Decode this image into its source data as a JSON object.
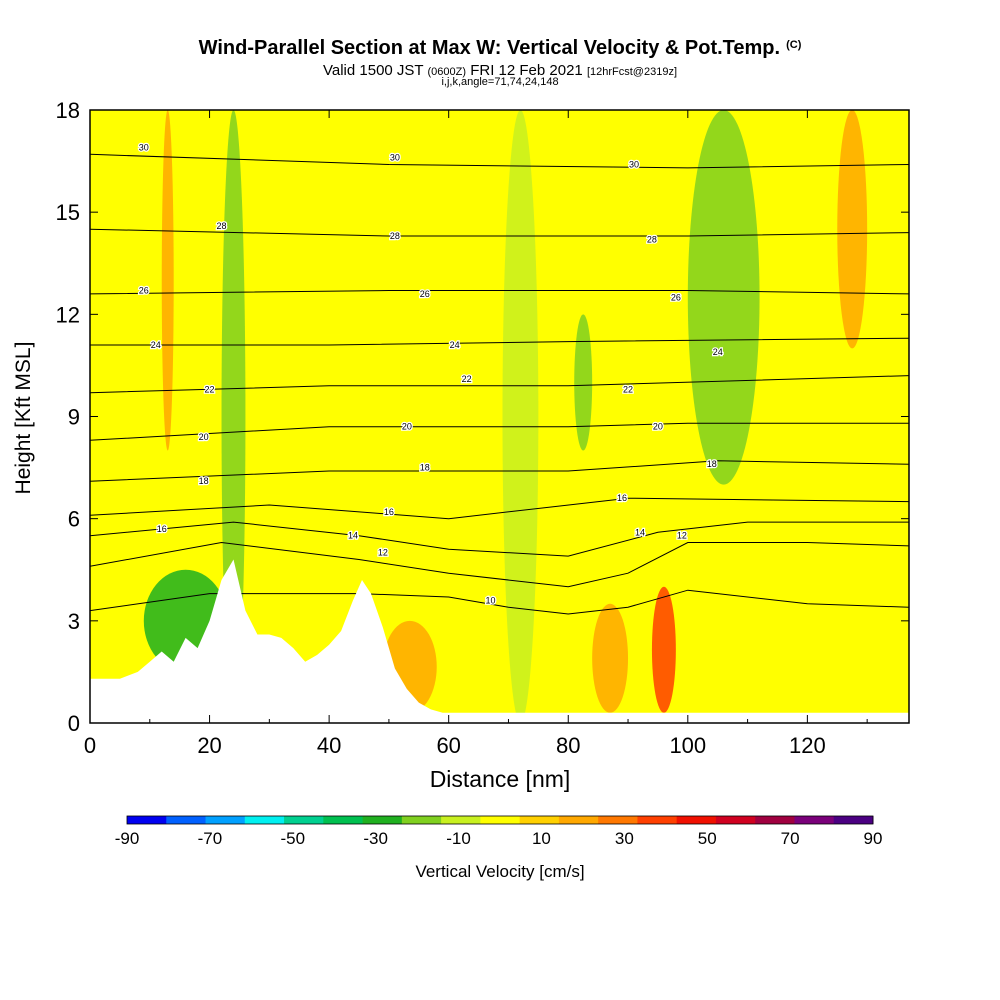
{
  "title": "Wind-Parallel Section at Max W: Vertical Velocity & Pot.Temp.",
  "copyright_mark": "(C)",
  "subtitle_main": "Valid 1500 JST",
  "subtitle_utc": "(0600Z)",
  "subtitle_date": "FRI 12 Feb 2021",
  "subtitle_fcst": "[12hrFcst@2319z]",
  "index_line": "i,j,k,angle=71,74,24,148",
  "chart_data": {
    "type": "heatmap",
    "xlabel": "Distance [nm]",
    "ylabel": "Height [Kft MSL]",
    "xlim": [
      0,
      137
    ],
    "ylim": [
      0,
      18
    ],
    "x_ticks": [
      0,
      20,
      40,
      60,
      80,
      100,
      120
    ],
    "y_ticks": [
      0,
      3,
      6,
      9,
      12,
      15,
      18
    ],
    "colorbar": {
      "label": "Vertical Velocity [cm/s]",
      "ticks": [
        -90,
        -70,
        -50,
        -30,
        -10,
        10,
        30,
        50,
        70,
        90
      ],
      "colors": [
        "#0000f0",
        "#0060ff",
        "#00a0ff",
        "#00f0f0",
        "#00d090",
        "#00c050",
        "#20b020",
        "#80d020",
        "#c8f020",
        "#ffff00",
        "#ffd000",
        "#ffa800",
        "#ff7800",
        "#ff4000",
        "#f01000",
        "#d00020",
        "#a00040",
        "#7a007a",
        "#4b0082"
      ]
    },
    "background_w": 0,
    "terrain_ridges": [
      {
        "x": [
          0,
          2,
          5,
          8,
          10,
          12,
          14,
          16,
          18,
          20,
          22,
          24,
          26,
          28,
          30,
          32,
          34,
          36,
          38,
          40,
          42,
          44,
          45.5,
          47,
          49,
          51,
          53,
          55,
          57,
          59,
          61,
          137
        ],
        "height": [
          1.3,
          1.3,
          1.3,
          1.5,
          1.8,
          2.1,
          1.8,
          2.5,
          2.2,
          3.0,
          4.2,
          4.8,
          3.3,
          2.6,
          2.6,
          2.5,
          2.2,
          1.8,
          2.0,
          2.3,
          2.7,
          3.6,
          4.2,
          3.8,
          2.8,
          1.6,
          1.0,
          0.6,
          0.4,
          0.3,
          0.3,
          0.3
        ]
      }
    ],
    "theta_contours": [
      {
        "level": 10,
        "height_profile": [
          [
            0,
            3.3
          ],
          [
            20,
            3.8
          ],
          [
            45,
            3.8
          ],
          [
            60,
            3.7
          ],
          [
            70,
            3.4
          ],
          [
            80,
            3.2
          ],
          [
            90,
            3.4
          ],
          [
            100,
            3.9
          ],
          [
            120,
            3.5
          ],
          [
            137,
            3.4
          ]
        ]
      },
      {
        "level": 12,
        "height_profile": [
          [
            0,
            4.6
          ],
          [
            22,
            5.3
          ],
          [
            45,
            4.8
          ],
          [
            60,
            4.4
          ],
          [
            80,
            4.0
          ],
          [
            90,
            4.4
          ],
          [
            100,
            5.3
          ],
          [
            120,
            5.3
          ],
          [
            137,
            5.2
          ]
        ]
      },
      {
        "level": 14,
        "height_profile": [
          [
            0,
            5.5
          ],
          [
            24,
            5.9
          ],
          [
            45,
            5.5
          ],
          [
            60,
            5.1
          ],
          [
            80,
            4.9
          ],
          [
            95,
            5.6
          ],
          [
            110,
            5.9
          ],
          [
            137,
            5.9
          ]
        ]
      },
      {
        "level": 16,
        "height_profile": [
          [
            0,
            6.1
          ],
          [
            30,
            6.4
          ],
          [
            60,
            6.0
          ],
          [
            90,
            6.6
          ],
          [
            137,
            6.5
          ]
        ]
      },
      {
        "level": 18,
        "height_profile": [
          [
            0,
            7.1
          ],
          [
            40,
            7.4
          ],
          [
            80,
            7.4
          ],
          [
            105,
            7.7
          ],
          [
            137,
            7.6
          ]
        ]
      },
      {
        "level": 20,
        "height_profile": [
          [
            0,
            8.3
          ],
          [
            40,
            8.7
          ],
          [
            80,
            8.7
          ],
          [
            100,
            8.8
          ],
          [
            137,
            8.8
          ]
        ]
      },
      {
        "level": 22,
        "height_profile": [
          [
            0,
            9.7
          ],
          [
            40,
            9.9
          ],
          [
            80,
            9.9
          ],
          [
            137,
            10.2
          ]
        ]
      },
      {
        "level": 24,
        "height_profile": [
          [
            0,
            11.1
          ],
          [
            40,
            11.1
          ],
          [
            80,
            11.2
          ],
          [
            137,
            11.3
          ]
        ]
      },
      {
        "level": 26,
        "height_profile": [
          [
            0,
            12.6
          ],
          [
            50,
            12.7
          ],
          [
            100,
            12.7
          ],
          [
            137,
            12.6
          ]
        ]
      },
      {
        "level": 28,
        "height_profile": [
          [
            0,
            14.5
          ],
          [
            50,
            14.3
          ],
          [
            100,
            14.3
          ],
          [
            137,
            14.4
          ]
        ]
      },
      {
        "level": 30,
        "height_profile": [
          [
            0,
            16.7
          ],
          [
            50,
            16.4
          ],
          [
            100,
            16.3
          ],
          [
            137,
            16.4
          ]
        ]
      }
    ],
    "theta_labels": [
      {
        "text": "30",
        "x": 9,
        "y": 16.9
      },
      {
        "text": "30",
        "x": 51,
        "y": 16.6
      },
      {
        "text": "30",
        "x": 91,
        "y": 16.4
      },
      {
        "text": "28",
        "x": 22,
        "y": 14.6
      },
      {
        "text": "28",
        "x": 51,
        "y": 14.3
      },
      {
        "text": "28",
        "x": 94,
        "y": 14.2
      },
      {
        "text": "26",
        "x": 9,
        "y": 12.7
      },
      {
        "text": "26",
        "x": 56,
        "y": 12.6
      },
      {
        "text": "26",
        "x": 98,
        "y": 12.5
      },
      {
        "text": "24",
        "x": 11,
        "y": 11.1
      },
      {
        "text": "24",
        "x": 61,
        "y": 11.1
      },
      {
        "text": "24",
        "x": 105,
        "y": 10.9
      },
      {
        "text": "22",
        "x": 20,
        "y": 9.8
      },
      {
        "text": "22",
        "x": 63,
        "y": 10.1
      },
      {
        "text": "22",
        "x": 90,
        "y": 9.8
      },
      {
        "text": "20",
        "x": 19,
        "y": 8.4
      },
      {
        "text": "20",
        "x": 53,
        "y": 8.7
      },
      {
        "text": "20",
        "x": 95,
        "y": 8.7
      },
      {
        "text": "18",
        "x": 19,
        "y": 7.1
      },
      {
        "text": "18",
        "x": 56,
        "y": 7.5
      },
      {
        "text": "18",
        "x": 104,
        "y": 7.6
      },
      {
        "text": "16",
        "x": 12,
        "y": 5.7
      },
      {
        "text": "16",
        "x": 50,
        "y": 6.2
      },
      {
        "text": "16",
        "x": 89,
        "y": 6.6
      },
      {
        "text": "14",
        "x": 44,
        "y": 5.5
      },
      {
        "text": "14",
        "x": 92,
        "y": 5.6
      },
      {
        "text": "12",
        "x": 49,
        "y": 5.0
      },
      {
        "text": "12",
        "x": 99,
        "y": 5.5
      },
      {
        "text": "10",
        "x": 67,
        "y": 3.6
      }
    ],
    "w_features": [
      {
        "x": [
          22,
          26
        ],
        "y": [
          0,
          18
        ],
        "value": -20
      },
      {
        "x": [
          12,
          14
        ],
        "y": [
          8,
          18
        ],
        "value": 15
      },
      {
        "x": [
          69,
          75
        ],
        "y": [
          0,
          18
        ],
        "value": -15
      },
      {
        "x": [
          81,
          84
        ],
        "y": [
          8,
          12
        ],
        "value": -25
      },
      {
        "x": [
          100,
          112
        ],
        "y": [
          7,
          18
        ],
        "value": -25
      },
      {
        "x": [
          94,
          98
        ],
        "y": [
          0.3,
          4
        ],
        "value": 35
      },
      {
        "x": [
          84,
          90
        ],
        "y": [
          0.3,
          3.5
        ],
        "value": 20
      },
      {
        "x": [
          49,
          58
        ],
        "y": [
          0.3,
          3
        ],
        "value": 20
      },
      {
        "x": [
          125,
          130
        ],
        "y": [
          11,
          18
        ],
        "value": 15
      },
      {
        "x": [
          9,
          23
        ],
        "y": [
          1.5,
          4.5
        ],
        "value": -35
      }
    ]
  }
}
